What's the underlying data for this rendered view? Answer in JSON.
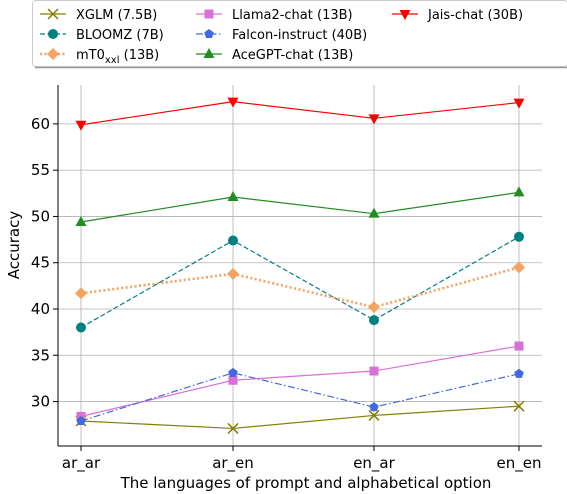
{
  "chart_data": {
    "type": "line",
    "xlabel": "The languages of prompt and alphabetical option",
    "ylabel": "Accuracy",
    "categories": [
      "ar_ar",
      "ar_en",
      "en_ar",
      "en_en"
    ],
    "ylim": [
      25.2,
      64.2
    ],
    "yticks": [
      30,
      35,
      40,
      45,
      50,
      55,
      60
    ],
    "grid": true,
    "legend_position": "top",
    "series": [
      {
        "name": "XGLM (7.5B)",
        "values": [
          27.9,
          27.1,
          28.5,
          29.5
        ],
        "color": "#808000",
        "marker": "x",
        "dash": "solid"
      },
      {
        "name": "BLOOMZ (7B)",
        "values": [
          38.0,
          47.4,
          38.8,
          47.8
        ],
        "color": "#008080",
        "marker": "circle",
        "dash": "dashed"
      },
      {
        "name": "mT0_xxl (13B)",
        "label_main": "mT0",
        "label_sub": "xxl",
        "label_tail": " (13B)",
        "values": [
          41.7,
          43.8,
          40.2,
          44.5
        ],
        "color": "#f4a460",
        "marker": "diamond",
        "dash": "dotted"
      },
      {
        "name": "Llama2-chat (13B)",
        "values": [
          28.4,
          32.3,
          33.3,
          36.0
        ],
        "color": "#da70d6",
        "marker": "square",
        "dash": "solid"
      },
      {
        "name": "Falcon-instruct (40B)",
        "values": [
          27.9,
          33.1,
          29.4,
          33.0
        ],
        "color": "#4169e1",
        "marker": "pentagon",
        "dash": "dashdot"
      },
      {
        "name": "AceGPT-chat (13B)",
        "values": [
          49.4,
          52.1,
          50.3,
          52.6
        ],
        "color": "#228b22",
        "marker": "triangle-up",
        "dash": "solid"
      },
      {
        "name": "Jais-chat (30B)",
        "values": [
          59.9,
          62.4,
          60.6,
          62.3
        ],
        "color": "#ff0000",
        "marker": "triangle-down",
        "dash": "solid"
      }
    ]
  }
}
